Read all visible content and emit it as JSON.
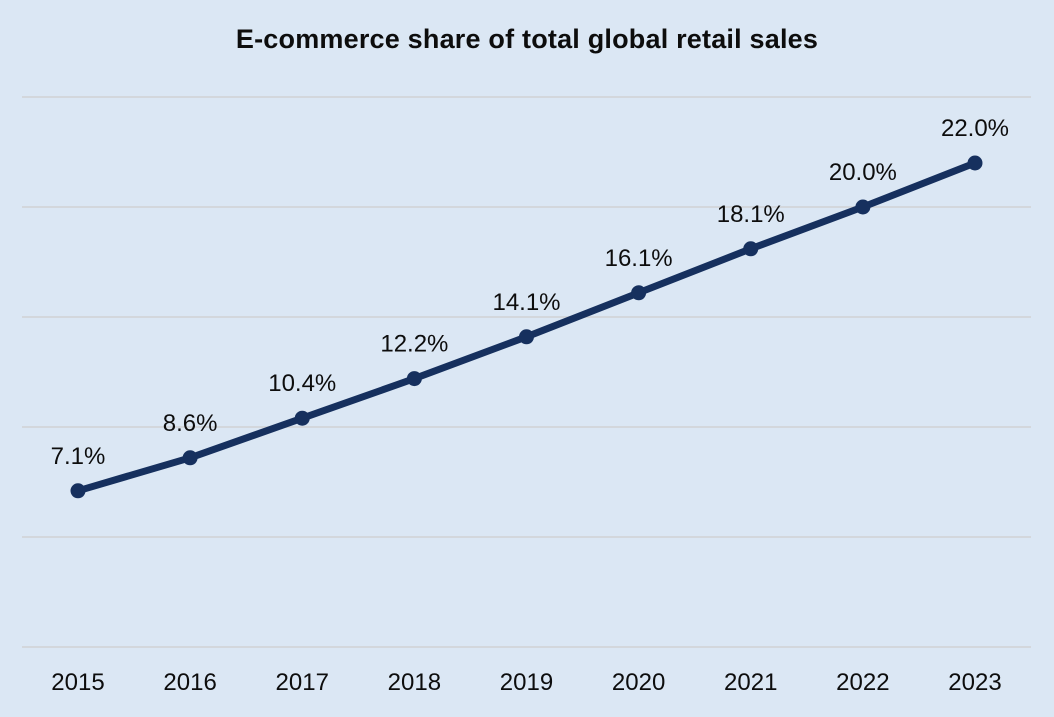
{
  "chart_data": {
    "type": "line",
    "title": "E-commerce share of total global retail sales",
    "categories": [
      "2015",
      "2016",
      "2017",
      "2018",
      "2019",
      "2020",
      "2021",
      "2022",
      "2023"
    ],
    "values": [
      7.1,
      8.6,
      10.4,
      12.2,
      14.1,
      16.1,
      18.1,
      20.0,
      22.0
    ],
    "data_labels": [
      "7.1%",
      "8.6%",
      "10.4%",
      "12.2%",
      "14.1%",
      "16.1%",
      "18.1%",
      "20.0%",
      "22.0%"
    ],
    "xlabel": "",
    "ylabel": "",
    "ylim": [
      0,
      25
    ],
    "grid": true,
    "gridline_step_pct": 5,
    "legend_position": "none",
    "colors": {
      "line": "#16305e",
      "marker": "#16305e",
      "background": "#dbe7f4",
      "gridline": "#d3d7dc",
      "text": "#0d0d0d"
    }
  }
}
